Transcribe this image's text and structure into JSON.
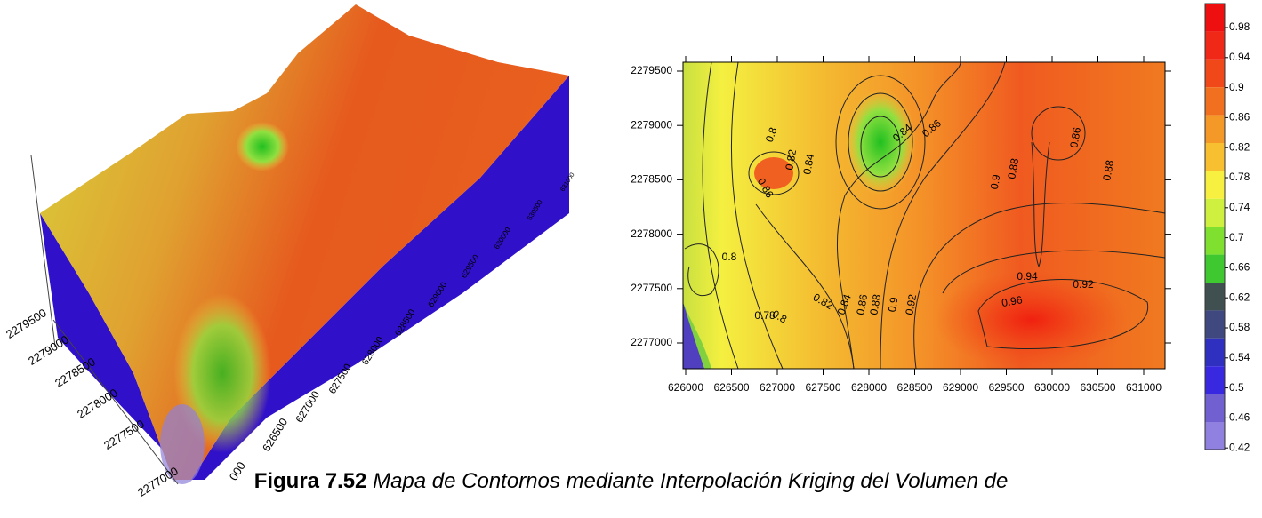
{
  "surface_3d": {
    "y_axis_labels": [
      "2279500",
      "2279000",
      "2278500",
      "2278000",
      "2277500",
      "2277000"
    ],
    "x_axis_labels": [
      "000",
      "626500",
      "627000",
      "627500",
      "628000",
      "628500",
      "629000",
      "629500",
      "630000",
      "630500",
      "631000"
    ]
  },
  "contour_map": {
    "xticks": [
      "626000",
      "626500",
      "627000",
      "627500",
      "628000",
      "628500",
      "629000",
      "629500",
      "630000",
      "630500",
      "631000"
    ],
    "yticks": [
      "2279500",
      "2279000",
      "2278500",
      "2278000",
      "2277500",
      "2277000"
    ],
    "contour_labels": [
      "0.8",
      "0.82",
      "0.84",
      "0.86",
      "0.84",
      "0.86",
      "0.88",
      "0.9",
      "0.86",
      "0.88",
      "0.8",
      "0.82",
      "0.84",
      "0.86",
      "0.88",
      "0.9",
      "0.92",
      "0.94",
      "0.92",
      "0.96",
      "0.78",
      "0.8"
    ]
  },
  "colorbar": {
    "labels": [
      "0.98",
      "0.94",
      "0.9",
      "0.86",
      "0.82",
      "0.78",
      "0.74",
      "0.7",
      "0.66",
      "0.62",
      "0.58",
      "0.54",
      "0.5",
      "0.46",
      "0.42"
    ]
  },
  "caption": {
    "label": "Figura 7.52",
    "text": "Mapa de Contornos mediante Interpolación Kriging del Volumen de"
  }
}
